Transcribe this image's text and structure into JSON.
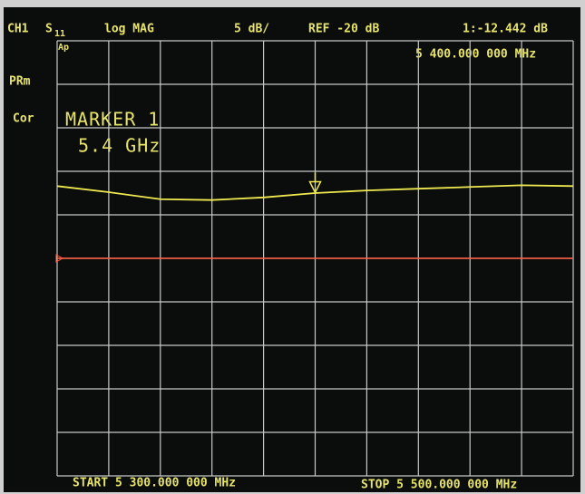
{
  "chart_data": {
    "type": "line",
    "channel": "CH1",
    "param": "S",
    "param_sub": "11",
    "format": "log MAG",
    "scale": "5 dB/",
    "ref": "REF -20 dB",
    "marker_readout": "1:-12.442 dB",
    "marker_freq": "5 400.000 000 MHz",
    "side_labels": [
      "PRm",
      "Cor"
    ],
    "corner": "Ap",
    "annotation": [
      "MARKER 1",
      "5.4 GHz"
    ],
    "start": "START 5 300.000 000 MHz",
    "stop": "STOP 5 500.000 000 MHz",
    "xlim": [
      5300,
      5500
    ],
    "ylim": [
      -45,
      5
    ],
    "divisions": 10,
    "ref_level": -20,
    "ref_color": "#ff5a3c",
    "x": [
      5300,
      5320,
      5340,
      5360,
      5380,
      5400,
      5420,
      5440,
      5460,
      5480,
      5500
    ],
    "series": [
      {
        "color": "#f0ea50",
        "values": [
          -11.7,
          -12.4,
          -13.2,
          -13.3,
          -13.0,
          -12.5,
          -12.2,
          -12.0,
          -11.8,
          -11.6,
          -11.7
        ]
      }
    ],
    "marker": {
      "x": 5400,
      "value": -12.442
    }
  }
}
